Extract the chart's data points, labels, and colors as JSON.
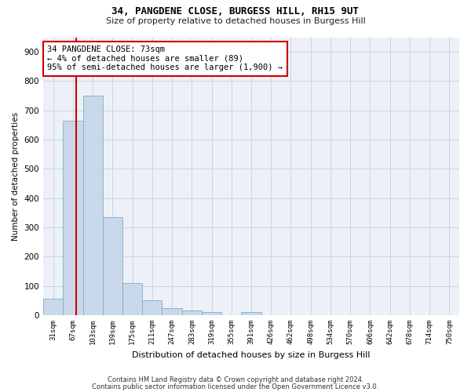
{
  "title": "34, PANGDENE CLOSE, BURGESS HILL, RH15 9UT",
  "subtitle": "Size of property relative to detached houses in Burgess Hill",
  "xlabel": "Distribution of detached houses by size in Burgess Hill",
  "ylabel": "Number of detached properties",
  "bins": [
    "31sqm",
    "67sqm",
    "103sqm",
    "139sqm",
    "175sqm",
    "211sqm",
    "247sqm",
    "283sqm",
    "319sqm",
    "355sqm",
    "391sqm",
    "426sqm",
    "462sqm",
    "498sqm",
    "534sqm",
    "570sqm",
    "606sqm",
    "642sqm",
    "678sqm",
    "714sqm",
    "750sqm"
  ],
  "values": [
    57,
    665,
    750,
    335,
    110,
    52,
    25,
    17,
    12,
    0,
    12,
    0,
    0,
    0,
    0,
    0,
    0,
    0,
    0,
    0,
    0
  ],
  "bar_color": "#c8d8ea",
  "bar_edge_color": "#7aafc8",
  "grid_color": "#c8d4e4",
  "property_line_color": "#cc0000",
  "annotation_text": "34 PANGDENE CLOSE: 73sqm\n← 4% of detached houses are smaller (89)\n95% of semi-detached houses are larger (1,900) →",
  "annotation_box_color": "#cc0000",
  "annotation_bg": "#ffffff",
  "ylim": [
    0,
    950
  ],
  "yticks": [
    0,
    100,
    200,
    300,
    400,
    500,
    600,
    700,
    800,
    900
  ],
  "footer_line1": "Contains HM Land Registry data © Crown copyright and database right 2024.",
  "footer_line2": "Contains public sector information licensed under the Open Government Licence v3.0.",
  "background_color": "#edf1f7"
}
